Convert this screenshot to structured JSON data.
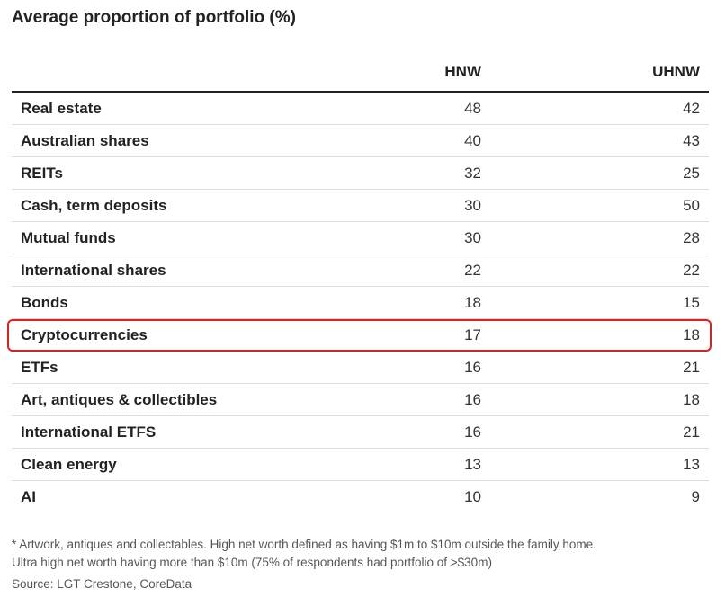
{
  "title": "Average proportion of portfolio (%)",
  "chart_data": {
    "type": "table",
    "title": "Average proportion of portfolio (%)",
    "columns": [
      "HNW",
      "UHNW"
    ],
    "rows": [
      {
        "label": "Real estate",
        "values": [
          "48",
          "42"
        ]
      },
      {
        "label": "Australian shares",
        "values": [
          "40",
          "43"
        ]
      },
      {
        "label": "REITs",
        "values": [
          "32",
          "25"
        ]
      },
      {
        "label": "Cash, term deposits",
        "values": [
          "30",
          "50"
        ]
      },
      {
        "label": "Mutual funds",
        "values": [
          "30",
          "28"
        ]
      },
      {
        "label": "International shares",
        "values": [
          "22",
          "22"
        ]
      },
      {
        "label": "Bonds",
        "values": [
          "18",
          "15"
        ]
      },
      {
        "label": "Cryptocurrencies",
        "values": [
          "17",
          "18"
        ],
        "highlighted": true
      },
      {
        "label": "ETFs",
        "values": [
          "16",
          "21"
        ]
      },
      {
        "label": "Art, antiques & collectibles",
        "values": [
          "16",
          "18"
        ]
      },
      {
        "label": "International ETFS",
        "values": [
          "16",
          "21"
        ]
      },
      {
        "label": "Clean energy",
        "values": [
          "13",
          "13"
        ]
      },
      {
        "label": "AI",
        "values": [
          "10",
          "9"
        ]
      }
    ],
    "highlight_color": "#e0201f"
  },
  "footnote_line1": "* Artwork, antiques and collectables. High net worth defined as having $1m to $10m outside the family home.",
  "footnote_line2": "Ultra high net worth having more than $10m (75% of respondents had portfolio of >$30m)",
  "source": "Source: LGT Crestone, CoreData"
}
